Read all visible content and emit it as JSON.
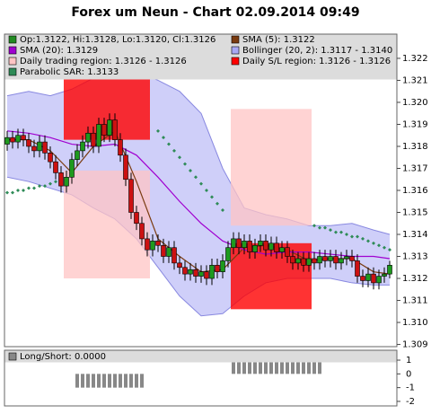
{
  "chart_data": {
    "type": "candlestick",
    "title": "Forex um Neun - Chart 02.09.2014 09:49",
    "ylim": [
      1.3089,
      1.3231
    ],
    "yticks": [
      1.309,
      {
        "value": 1.31,
        "label": "1.310"
      },
      1.311,
      1.312,
      1.313,
      1.314,
      1.315,
      1.316,
      1.317,
      1.318,
      1.319,
      {
        "value": 1.32,
        "label": "1.320"
      },
      1.321,
      1.322
    ],
    "candles": {
      "name": "Op:1.3122, Hi:1.3128, Lo:1.3120, Cl:1.3126",
      "color": "#228b22",
      "up_color": "#1e9a1e",
      "down_color": "#cc1111",
      "values": [
        [
          1.3181,
          1.3187,
          1.3178,
          1.3184
        ],
        [
          1.3184,
          1.3187,
          1.3179,
          1.3182
        ],
        [
          1.3182,
          1.3188,
          1.3179,
          1.3185
        ],
        [
          1.3185,
          1.3188,
          1.318,
          1.3183
        ],
        [
          1.3183,
          1.3186,
          1.3177,
          1.318
        ],
        [
          1.318,
          1.3183,
          1.3175,
          1.3178
        ],
        [
          1.3178,
          1.3185,
          1.3175,
          1.3182
        ],
        [
          1.3182,
          1.3185,
          1.3174,
          1.3177
        ],
        [
          1.3177,
          1.318,
          1.317,
          1.3173
        ],
        [
          1.3173,
          1.3176,
          1.3165,
          1.3168
        ],
        [
          1.3168,
          1.3171,
          1.3159,
          1.3162
        ],
        [
          1.3162,
          1.3169,
          1.3159,
          1.3166
        ],
        [
          1.3166,
          1.3177,
          1.3163,
          1.3174
        ],
        [
          1.3174,
          1.3181,
          1.3171,
          1.3178
        ],
        [
          1.3178,
          1.3185,
          1.3175,
          1.3182
        ],
        [
          1.3182,
          1.3189,
          1.3179,
          1.3186
        ],
        [
          1.3186,
          1.3189,
          1.3177,
          1.318
        ],
        [
          1.318,
          1.3193,
          1.3177,
          1.319
        ],
        [
          1.319,
          1.3193,
          1.3182,
          1.3185
        ],
        [
          1.3185,
          1.3195,
          1.3182,
          1.3192
        ],
        [
          1.3192,
          1.3195,
          1.318,
          1.3183
        ],
        [
          1.3183,
          1.3186,
          1.3173,
          1.3176
        ],
        [
          1.3176,
          1.3179,
          1.3162,
          1.3165
        ],
        [
          1.3165,
          1.3168,
          1.3147,
          1.315
        ],
        [
          1.315,
          1.3153,
          1.3142,
          1.3145
        ],
        [
          1.3145,
          1.3148,
          1.3135,
          1.3138
        ],
        [
          1.3138,
          1.3141,
          1.313,
          1.3133
        ],
        [
          1.3133,
          1.314,
          1.313,
          1.3137
        ],
        [
          1.3137,
          1.314,
          1.3132,
          1.3135
        ],
        [
          1.3135,
          1.3138,
          1.3127,
          1.313
        ],
        [
          1.313,
          1.3137,
          1.3127,
          1.3134
        ],
        [
          1.3134,
          1.3137,
          1.3124,
          1.3127
        ],
        [
          1.3127,
          1.313,
          1.3122,
          1.3125
        ],
        [
          1.3125,
          1.3128,
          1.3119,
          1.3122
        ],
        [
          1.3122,
          1.3127,
          1.3119,
          1.3124
        ],
        [
          1.3124,
          1.3127,
          1.3118,
          1.3121
        ],
        [
          1.3121,
          1.3126,
          1.3118,
          1.3123
        ],
        [
          1.3123,
          1.3126,
          1.3117,
          1.312
        ],
        [
          1.312,
          1.3129,
          1.3117,
          1.3126
        ],
        [
          1.3126,
          1.3129,
          1.312,
          1.3123
        ],
        [
          1.3123,
          1.3131,
          1.312,
          1.3128
        ],
        [
          1.3128,
          1.3137,
          1.3125,
          1.3134
        ],
        [
          1.3134,
          1.3141,
          1.3131,
          1.3138
        ],
        [
          1.3138,
          1.3141,
          1.3131,
          1.3134
        ],
        [
          1.3134,
          1.314,
          1.3131,
          1.3137
        ],
        [
          1.3137,
          1.314,
          1.3129,
          1.3132
        ],
        [
          1.3132,
          1.3138,
          1.3129,
          1.3135
        ],
        [
          1.3135,
          1.314,
          1.3132,
          1.3137
        ],
        [
          1.3137,
          1.314,
          1.313,
          1.3133
        ],
        [
          1.3133,
          1.3139,
          1.313,
          1.3136
        ],
        [
          1.3136,
          1.3139,
          1.3129,
          1.3132
        ],
        [
          1.3132,
          1.3137,
          1.3129,
          1.3134
        ],
        [
          1.3134,
          1.3137,
          1.3127,
          1.313
        ],
        [
          1.313,
          1.3133,
          1.3124,
          1.3127
        ],
        [
          1.3127,
          1.3132,
          1.3124,
          1.3129
        ],
        [
          1.3129,
          1.3132,
          1.3123,
          1.3126
        ],
        [
          1.3126,
          1.3132,
          1.3123,
          1.3129
        ],
        [
          1.3129,
          1.3132,
          1.3124,
          1.3127
        ],
        [
          1.3127,
          1.3133,
          1.3124,
          1.313
        ],
        [
          1.313,
          1.3133,
          1.3125,
          1.3128
        ],
        [
          1.3128,
          1.3133,
          1.3125,
          1.313
        ],
        [
          1.313,
          1.3133,
          1.3124,
          1.3127
        ],
        [
          1.3127,
          1.3132,
          1.3124,
          1.3129
        ],
        [
          1.3129,
          1.3133,
          1.3126,
          1.313
        ],
        [
          1.313,
          1.3133,
          1.3125,
          1.3128
        ],
        [
          1.3128,
          1.3131,
          1.3118,
          1.3121
        ],
        [
          1.3121,
          1.3124,
          1.3116,
          1.3119
        ],
        [
          1.3119,
          1.3125,
          1.3116,
          1.3122
        ],
        [
          1.3122,
          1.3125,
          1.3115,
          1.3118
        ],
        [
          1.3118,
          1.3124,
          1.3115,
          1.3121
        ],
        [
          1.3121,
          1.3125,
          1.3118,
          1.3122
        ],
        [
          1.3122,
          1.3128,
          1.312,
          1.3126
        ]
      ]
    },
    "lines": [
      {
        "name": "SMA (5): 1.3122",
        "color": "#7a3b10",
        "x": [
          0,
          4,
          8,
          12,
          16,
          20,
          24,
          28,
          32,
          36,
          40,
          44,
          48,
          52,
          56,
          60,
          64,
          68,
          71
        ],
        "values": [
          1.3183,
          1.3183,
          1.3178,
          1.3168,
          1.318,
          1.3187,
          1.3164,
          1.3138,
          1.313,
          1.3123,
          1.3124,
          1.3134,
          1.3135,
          1.3133,
          1.3128,
          1.3129,
          1.3129,
          1.3123,
          1.3122
        ]
      },
      {
        "name": "SMA (20): 1.3129",
        "color": "#a000d0",
        "x": [
          0,
          4,
          8,
          12,
          16,
          20,
          24,
          28,
          32,
          36,
          40,
          44,
          48,
          52,
          56,
          60,
          64,
          68,
          71
        ],
        "values": [
          1.3187,
          1.3186,
          1.3184,
          1.3181,
          1.318,
          1.3181,
          1.3176,
          1.3166,
          1.3155,
          1.3145,
          1.3137,
          1.3133,
          1.3131,
          1.3132,
          1.3132,
          1.3131,
          1.313,
          1.313,
          1.3129
        ]
      }
    ],
    "bands": {
      "name": "Bollinger (20, 2): 1.3117 - 1.3140",
      "color": "#a8a8f4",
      "x": [
        0,
        4,
        8,
        12,
        16,
        20,
        24,
        28,
        32,
        36,
        40,
        44,
        48,
        52,
        56,
        60,
        64,
        68,
        71
      ],
      "upper": [
        1.3203,
        1.3205,
        1.3203,
        1.3206,
        1.3211,
        1.3215,
        1.3214,
        1.321,
        1.3205,
        1.3195,
        1.317,
        1.3152,
        1.3149,
        1.3147,
        1.3144,
        1.3144,
        1.3145,
        1.3142,
        1.314
      ],
      "lower": [
        1.3166,
        1.3164,
        1.3161,
        1.3158,
        1.3152,
        1.3147,
        1.3138,
        1.3125,
        1.3112,
        1.3103,
        1.3104,
        1.3112,
        1.3118,
        1.312,
        1.312,
        1.312,
        1.3118,
        1.3117,
        1.3117
      ]
    },
    "regions": [
      {
        "name": "Daily trading region: 1.3126 - 1.3126",
        "color": "#ffc4c4",
        "boxes": [
          {
            "x": [
              11,
              26
            ],
            "range": [
              1.312,
              1.3169
            ]
          },
          {
            "x": [
              42,
              56
            ],
            "range": [
              1.3144,
              1.3197
            ]
          }
        ]
      },
      {
        "name": "Daily S/L region: 1.3126 - 1.3126",
        "color": "#ff0000",
        "boxes": [
          {
            "x": [
              11,
              26
            ],
            "range": [
              1.3183,
              1.3211
            ]
          },
          {
            "x": [
              42,
              56
            ],
            "range": [
              1.3106,
              1.3136
            ]
          }
        ]
      }
    ],
    "sar": {
      "name": "Parabolic SAR: 1.3133",
      "color": "#2e8b57",
      "values": [
        1.3159,
        1.3159,
        1.316,
        1.316,
        1.3161,
        1.3161,
        1.3162,
        1.3162,
        1.3163,
        1.3164,
        1.3165,
        null,
        null,
        null,
        null,
        null,
        null,
        null,
        null,
        null,
        null,
        null,
        null,
        null,
        null,
        null,
        null,
        null,
        1.3187,
        1.3184,
        1.3181,
        1.3178,
        1.3175,
        1.3172,
        1.3169,
        1.3166,
        1.3163,
        1.316,
        1.3157,
        1.3154,
        1.3151,
        null,
        null,
        null,
        null,
        null,
        null,
        null,
        null,
        null,
        null,
        null,
        null,
        null,
        null,
        null,
        null,
        1.3144,
        1.3143,
        1.3143,
        1.3142,
        1.3141,
        1.3141,
        1.314,
        1.3139,
        1.3139,
        1.3138,
        1.3137,
        1.3136,
        1.3135,
        1.3134,
        1.3133
      ]
    },
    "panel2": {
      "name": "Long/Short: 0.0000",
      "color": "#888888",
      "ylim": [
        -2.33,
        1.72
      ],
      "yticks": [
        1,
        0,
        -1,
        -2
      ],
      "values": [
        0,
        0,
        0,
        0,
        0,
        0,
        0,
        0,
        0,
        0,
        0,
        0,
        0,
        -1,
        -1,
        -1,
        -1,
        -1,
        -1,
        -1,
        -1,
        -1,
        -1,
        -1,
        -1,
        -1,
        0,
        0,
        0,
        0,
        0,
        0,
        0,
        0,
        0,
        0,
        0,
        0,
        0,
        0,
        0,
        0,
        1,
        1,
        1,
        1,
        1,
        1,
        1,
        1,
        1,
        1,
        1,
        1,
        1,
        1,
        1,
        1,
        1,
        0,
        0,
        0,
        0,
        0,
        0,
        0,
        0,
        0,
        0,
        0,
        0,
        0,
        0
      ]
    }
  }
}
